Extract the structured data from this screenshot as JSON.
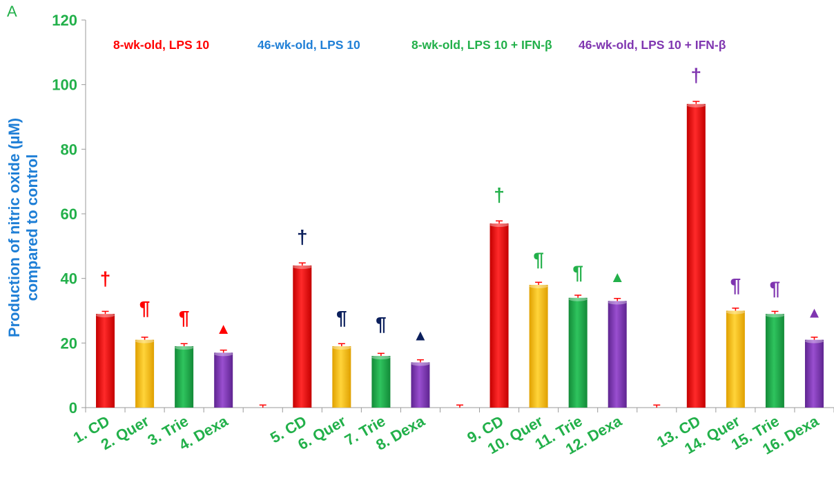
{
  "panel_label": "A",
  "colors": {
    "axis_text": "#22b04a",
    "ylabel": "#1f7fd6",
    "bar_red": "#ff0000",
    "bar_yellow": "#ffc000",
    "bar_green": "#1fa64a",
    "bar_purple": "#7f35b0",
    "error_bar": "#ff0000"
  },
  "chart_data": {
    "type": "bar",
    "ylabel_lines": [
      "Production of nitric oxide (µM)",
      "compared to control"
    ],
    "xlabel": "",
    "ylim": [
      0,
      120
    ],
    "yticks": [
      0,
      20,
      40,
      60,
      80,
      100,
      120
    ],
    "grid": false,
    "legend": [
      {
        "label": "8-wk-old, LPS 10",
        "color": "#ff0000"
      },
      {
        "label": "46-wk-old, LPS 10",
        "color": "#1f7fd6"
      },
      {
        "label": "8-wk-old, LPS 10 + IFN-β",
        "color": "#22b04a"
      },
      {
        "label": "46-wk-old, LPS 10 + IFN-β",
        "color": "#7f35b0"
      }
    ],
    "categories": [
      "1. CD",
      "2. Quer",
      "3. Trie",
      "4. Dexa",
      "",
      "5. CD",
      "6. Quer",
      "7. Trie",
      "8. Dexa",
      "",
      "9. CD",
      "10. Quer",
      "11. Trie",
      "12. Dexa",
      "",
      "13. CD",
      "14. Quer",
      "15. Trie",
      "16. Dexa"
    ],
    "values": [
      29,
      21,
      19,
      17,
      0,
      44,
      19,
      16,
      14,
      0,
      57,
      38,
      34,
      33,
      0,
      94,
      30,
      29,
      21
    ],
    "errors": [
      0.8,
      0.8,
      0.8,
      0.8,
      0.8,
      0.8,
      0.8,
      0.8,
      0.8,
      0.8,
      0.8,
      0.8,
      0.8,
      0.8,
      0.8,
      0.8,
      0.8,
      0.8,
      0.8
    ],
    "bar_colors": [
      "red",
      "yellow",
      "green",
      "purple",
      "none",
      "red",
      "yellow",
      "green",
      "purple",
      "none",
      "red",
      "yellow",
      "green",
      "purple",
      "none",
      "red",
      "yellow",
      "green",
      "purple"
    ],
    "annotations": [
      {
        "index": 0,
        "symbol": "†",
        "color": "#ff0000",
        "y": 40
      },
      {
        "index": 1,
        "symbol": "¶",
        "color": "#ff0000",
        "y": 31
      },
      {
        "index": 2,
        "symbol": "¶",
        "color": "#ff0000",
        "y": 28
      },
      {
        "index": 3,
        "symbol": "▲",
        "color": "#ff0000",
        "y": 25
      },
      {
        "index": 5,
        "symbol": "†",
        "color": "#0b1f5c",
        "y": 53
      },
      {
        "index": 6,
        "symbol": "¶",
        "color": "#0b1f5c",
        "y": 28
      },
      {
        "index": 7,
        "symbol": "¶",
        "color": "#0b1f5c",
        "y": 26
      },
      {
        "index": 8,
        "symbol": "▲",
        "color": "#0b1f5c",
        "y": 23
      },
      {
        "index": 10,
        "symbol": "†",
        "color": "#22b04a",
        "y": 66
      },
      {
        "index": 11,
        "symbol": "¶",
        "color": "#22b04a",
        "y": 46
      },
      {
        "index": 12,
        "symbol": "¶",
        "color": "#22b04a",
        "y": 42
      },
      {
        "index": 13,
        "symbol": "▲",
        "color": "#22b04a",
        "y": 41
      },
      {
        "index": 15,
        "symbol": "†",
        "color": "#7f35b0",
        "y": 103
      },
      {
        "index": 16,
        "symbol": "¶",
        "color": "#7f35b0",
        "y": 38
      },
      {
        "index": 17,
        "symbol": "¶",
        "color": "#7f35b0",
        "y": 37
      },
      {
        "index": 18,
        "symbol": "▲",
        "color": "#7f35b0",
        "y": 30
      }
    ]
  }
}
